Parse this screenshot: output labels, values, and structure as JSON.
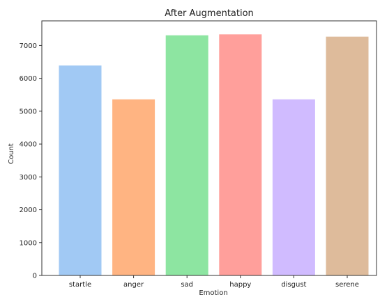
{
  "chart_data": {
    "type": "bar",
    "title": "After Augmentation",
    "xlabel": "Emotion",
    "ylabel": "Count",
    "categories": [
      "startle",
      "anger",
      "sad",
      "happy",
      "disgust",
      "serene"
    ],
    "values": [
      6390,
      5360,
      7310,
      7340,
      5360,
      7270
    ],
    "colors": [
      "#a1c9f4",
      "#ffb482",
      "#8de5a1",
      "#ff9f9b",
      "#d0bbff",
      "#debb9b"
    ],
    "ylim": [
      0,
      7750
    ],
    "yticks": [
      0,
      1000,
      2000,
      3000,
      4000,
      5000,
      6000,
      7000
    ],
    "grid": false
  }
}
